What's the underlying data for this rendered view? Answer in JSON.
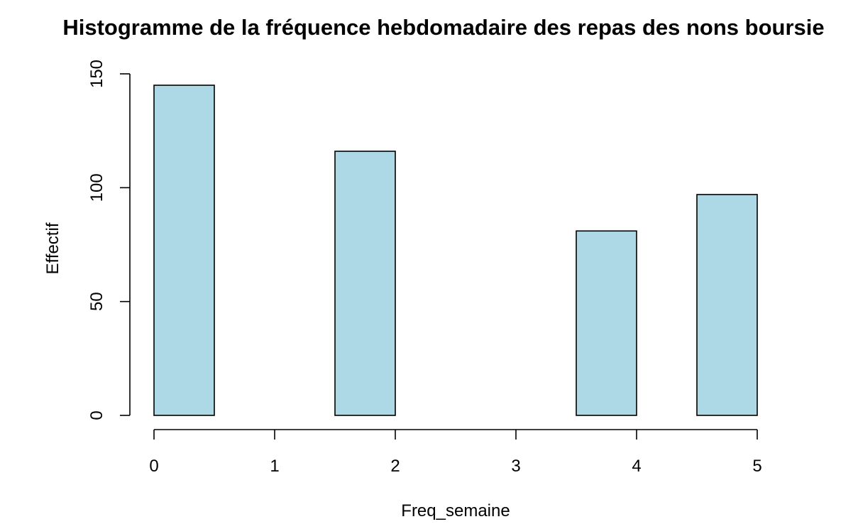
{
  "chart_data": {
    "type": "bar",
    "title": "Histogramme de la fréquence hebdomadaire des repas des nons boursie",
    "xlabel": "Freq_semaine",
    "ylabel": "Effectif",
    "bins": [
      {
        "x0": 0.0,
        "x1": 0.5,
        "value": 145
      },
      {
        "x0": 0.5,
        "x1": 1.0,
        "value": 0
      },
      {
        "x0": 1.0,
        "x1": 1.5,
        "value": 0
      },
      {
        "x0": 1.5,
        "x1": 2.0,
        "value": 116
      },
      {
        "x0": 2.0,
        "x1": 2.5,
        "value": 0
      },
      {
        "x0": 2.5,
        "x1": 3.0,
        "value": 0
      },
      {
        "x0": 3.0,
        "x1": 3.5,
        "value": 0
      },
      {
        "x0": 3.5,
        "x1": 4.0,
        "value": 81
      },
      {
        "x0": 4.0,
        "x1": 4.5,
        "value": 0
      },
      {
        "x0": 4.5,
        "x1": 5.0,
        "value": 97
      }
    ],
    "xticks": [
      "0",
      "1",
      "2",
      "3",
      "4",
      "5"
    ],
    "yticks": [
      "0",
      "50",
      "100",
      "150"
    ],
    "xlim": [
      0,
      5
    ],
    "ylim": [
      0,
      150
    ],
    "grid": false,
    "bar_color": "#add8e6",
    "edge_color": "#000000"
  }
}
